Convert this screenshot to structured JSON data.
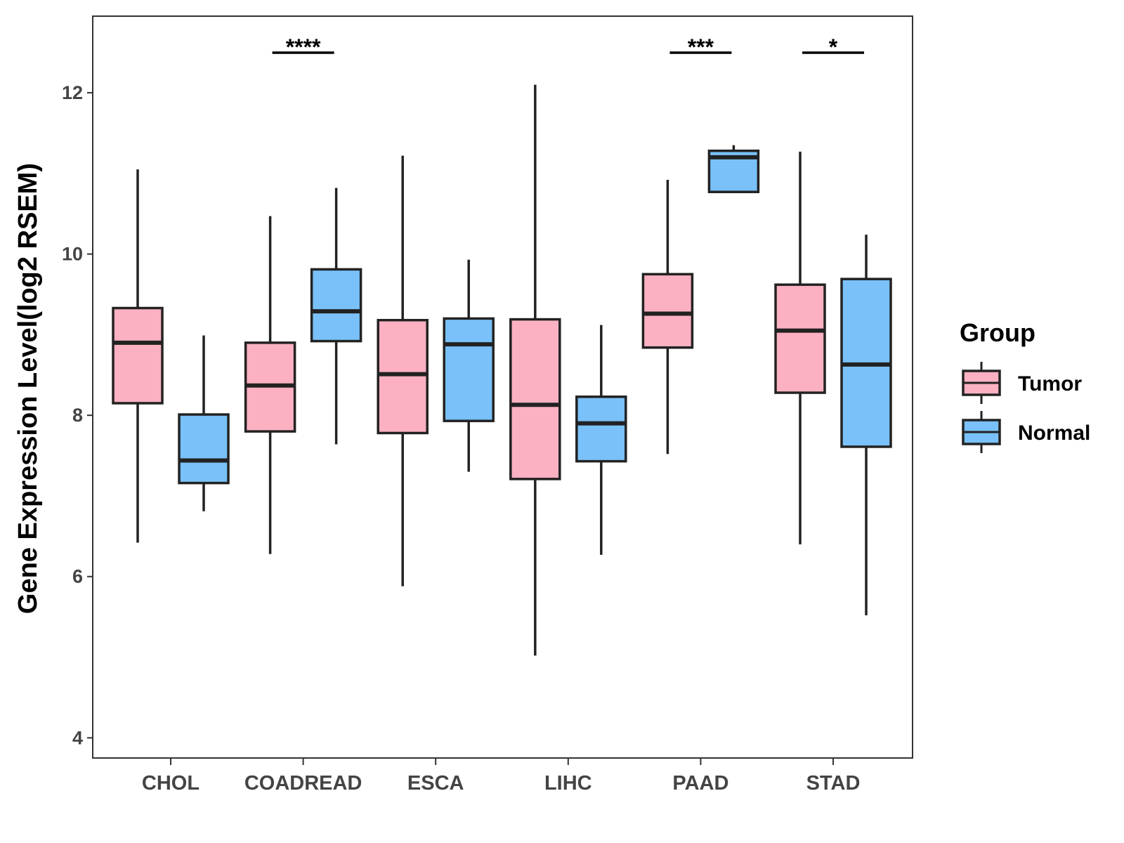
{
  "chart_data": {
    "type": "box",
    "title": "",
    "xlabel": "",
    "ylabel": "Gene Expression Level(log2 RSEM)",
    "ylim": [
      3.75,
      12.95
    ],
    "yticks": [
      4,
      6,
      8,
      10,
      12
    ],
    "categories": [
      "CHOL",
      "COADREAD",
      "ESCA",
      "LIHC",
      "PAAD",
      "STAD"
    ],
    "legend": {
      "title": "Group",
      "position": "right",
      "entries": [
        "Tumor",
        "Normal"
      ]
    },
    "colors": {
      "Tumor": "#fbb1c2",
      "Normal": "#79c1f8",
      "stroke": "#222222"
    },
    "series": [
      {
        "name": "Tumor",
        "boxes": [
          {
            "min": 6.42,
            "q1": 8.15,
            "median": 8.9,
            "q3": 9.33,
            "max": 11.05
          },
          {
            "min": 6.28,
            "q1": 7.8,
            "median": 8.37,
            "q3": 8.9,
            "max": 10.47
          },
          {
            "min": 5.88,
            "q1": 7.78,
            "median": 8.51,
            "q3": 9.18,
            "max": 11.22
          },
          {
            "min": 5.02,
            "q1": 7.21,
            "median": 8.13,
            "q3": 9.19,
            "max": 12.1
          },
          {
            "min": 7.52,
            "q1": 8.84,
            "median": 9.26,
            "q3": 9.75,
            "max": 10.92
          },
          {
            "min": 6.4,
            "q1": 8.28,
            "median": 9.05,
            "q3": 9.62,
            "max": 11.27
          }
        ]
      },
      {
        "name": "Normal",
        "boxes": [
          {
            "min": 6.81,
            "q1": 7.16,
            "median": 7.44,
            "q3": 8.01,
            "max": 8.99
          },
          {
            "min": 7.64,
            "q1": 8.92,
            "median": 9.29,
            "q3": 9.81,
            "max": 10.82
          },
          {
            "min": 7.3,
            "q1": 7.93,
            "median": 8.88,
            "q3": 9.2,
            "max": 9.93
          },
          {
            "min": 6.27,
            "q1": 7.43,
            "median": 7.9,
            "q3": 8.23,
            "max": 9.12
          },
          {
            "min": 10.77,
            "q1": 10.77,
            "median": 11.2,
            "q3": 11.28,
            "max": 11.35
          },
          {
            "min": 5.52,
            "q1": 7.61,
            "median": 8.63,
            "q3": 9.69,
            "max": 10.24
          }
        ]
      }
    ],
    "significance": [
      {
        "category": "COADREAD",
        "label": "****"
      },
      {
        "category": "PAAD",
        "label": "***"
      },
      {
        "category": "STAD",
        "label": "*"
      }
    ]
  }
}
